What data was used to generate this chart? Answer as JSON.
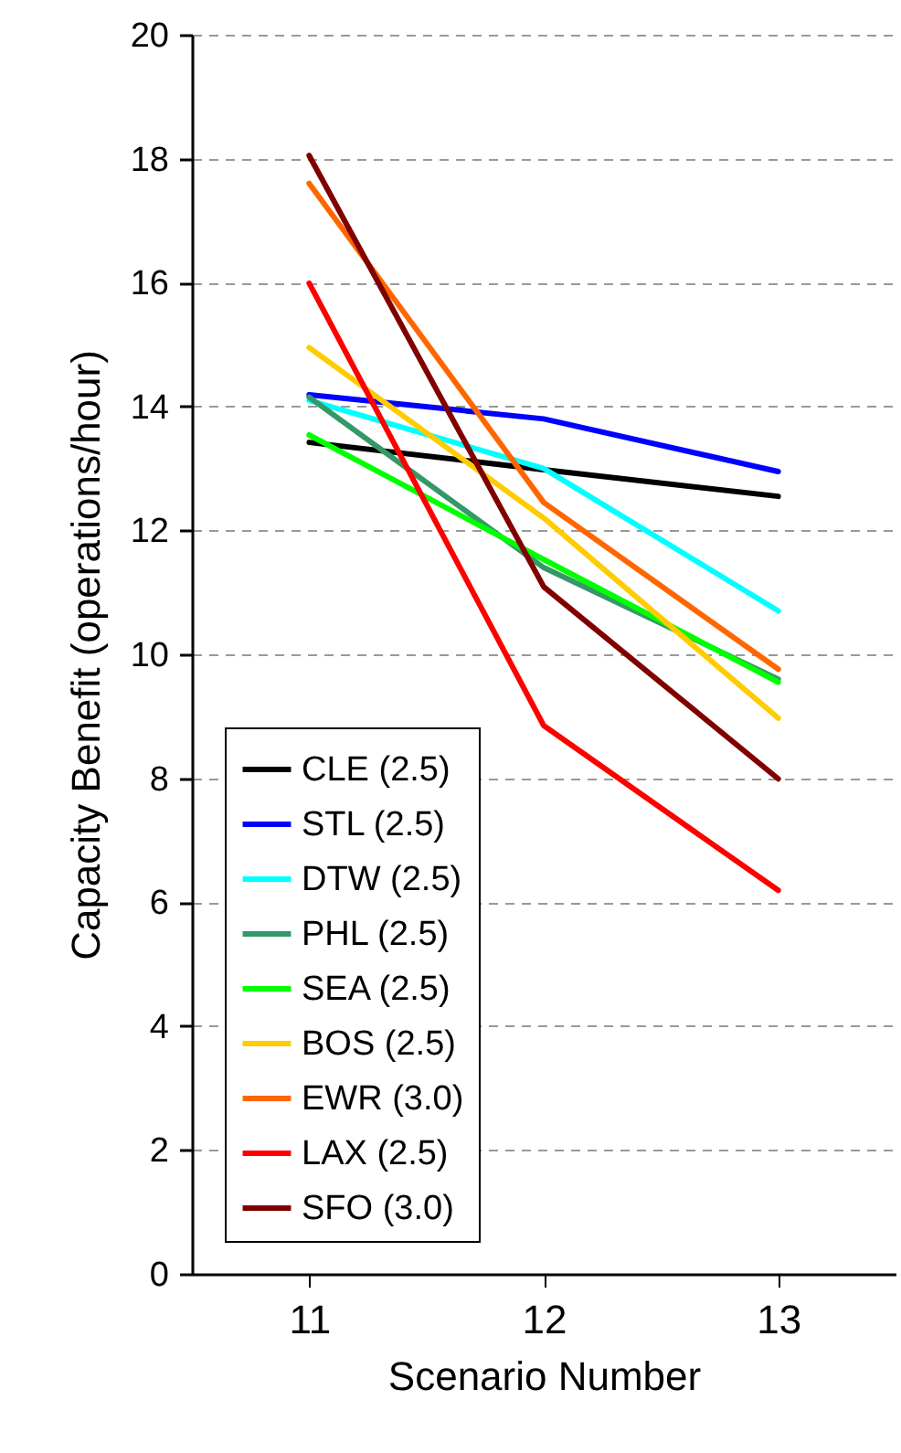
{
  "chart_data": {
    "type": "line",
    "xlabel": "Scenario Number",
    "ylabel": "Capacity Benefit (operations/hour)",
    "categories": [
      "11",
      "12",
      "13"
    ],
    "ylim": [
      0,
      20
    ],
    "yticks": [
      0,
      2,
      4,
      6,
      8,
      10,
      12,
      14,
      16,
      18,
      20
    ],
    "grid": "y",
    "legend": "bottom left",
    "line_style": "solid",
    "marker": "none",
    "series": [
      {
        "name": "CLE (2.5)",
        "color": "#000000",
        "values": [
          13.42,
          12.98,
          12.55
        ]
      },
      {
        "name": "STL (2.5)",
        "color": "#0000ff",
        "values": [
          14.19,
          13.8,
          12.95
        ]
      },
      {
        "name": "DTW (2.5)",
        "color": "#00ffff",
        "values": [
          14.1,
          13.0,
          10.7
        ]
      },
      {
        "name": "PHL (2.5)",
        "color": "#339966",
        "values": [
          14.15,
          11.4,
          9.6
        ]
      },
      {
        "name": "SEA (2.5)",
        "color": "#00ff00",
        "values": [
          13.54,
          11.53,
          9.55
        ]
      },
      {
        "name": "BOS (2.5)",
        "color": "#ffcc00",
        "values": [
          14.95,
          12.2,
          8.97
        ]
      },
      {
        "name": "EWR (3.0)",
        "color": "#ff6600",
        "values": [
          17.6,
          12.45,
          9.76
        ]
      },
      {
        "name": "LAX (2.5)",
        "color": "#ff0000",
        "values": [
          15.99,
          8.85,
          6.19
        ]
      },
      {
        "name": "SFO (3.0)",
        "color": "#800000",
        "values": [
          18.05,
          11.09,
          7.99
        ]
      }
    ]
  }
}
